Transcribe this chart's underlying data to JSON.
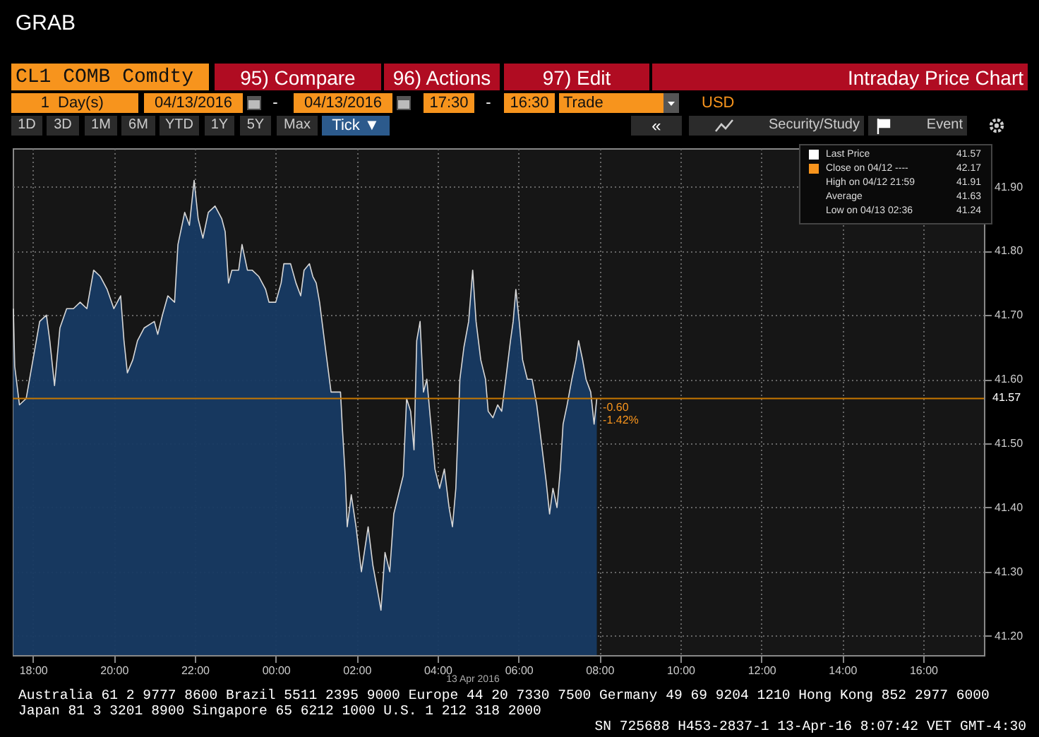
{
  "chart_data": {
    "type": "area",
    "title": "GRAB",
    "subtitle": "Intraday Price Chart",
    "x": [
      "2016-04-12T17:31",
      "2016-04-12T17:33",
      "2016-04-12T17:40",
      "2016-04-12T17:50",
      "2016-04-12T18:00",
      "2016-04-12T18:10",
      "2016-04-12T18:20",
      "2016-04-12T18:25",
      "2016-04-12T18:32",
      "2016-04-12T18:40",
      "2016-04-12T18:50",
      "2016-04-12T19:00",
      "2016-04-12T19:10",
      "2016-04-12T19:20",
      "2016-04-12T19:30",
      "2016-04-12T19:40",
      "2016-04-12T19:50",
      "2016-04-12T20:00",
      "2016-04-12T20:10",
      "2016-04-12T20:15",
      "2016-04-12T20:20",
      "2016-04-12T20:28",
      "2016-04-12T20:35",
      "2016-04-12T20:45",
      "2016-04-12T21:00",
      "2016-04-12T21:05",
      "2016-04-12T21:12",
      "2016-04-12T21:20",
      "2016-04-12T21:30",
      "2016-04-12T21:35",
      "2016-04-12T21:45",
      "2016-04-12T21:52",
      "2016-04-12T21:59",
      "2016-04-12T22:05",
      "2016-04-12T22:12",
      "2016-04-12T22:20",
      "2016-04-12T22:30",
      "2016-04-12T22:40",
      "2016-04-12T22:45",
      "2016-04-12T22:50",
      "2016-04-12T22:55",
      "2016-04-12T23:05",
      "2016-04-12T23:10",
      "2016-04-12T23:18",
      "2016-04-12T23:25",
      "2016-04-12T23:35",
      "2016-04-12T23:45",
      "2016-04-12T23:50",
      "2016-04-13T00:00",
      "2016-04-13T00:08",
      "2016-04-13T00:12",
      "2016-04-13T00:22",
      "2016-04-13T00:30",
      "2016-04-13T00:37",
      "2016-04-13T00:42",
      "2016-04-13T00:50",
      "2016-04-13T00:55",
      "2016-04-13T01:00",
      "2016-04-13T01:05",
      "2016-04-13T01:11",
      "2016-04-13T01:22",
      "2016-04-13T01:36",
      "2016-04-13T01:39",
      "2016-04-13T01:43",
      "2016-04-13T01:46",
      "2016-04-13T01:52",
      "2016-04-13T01:59",
      "2016-04-13T02:07",
      "2016-04-13T02:17",
      "2016-04-13T02:24",
      "2016-04-13T02:31",
      "2016-04-13T02:36",
      "2016-04-13T02:42",
      "2016-04-13T02:49",
      "2016-04-13T02:55",
      "2016-04-13T03:02",
      "2016-04-13T03:09",
      "2016-04-13T03:14",
      "2016-04-13T03:20",
      "2016-04-13T03:25",
      "2016-04-13T03:29",
      "2016-04-13T03:34",
      "2016-04-13T03:39",
      "2016-04-13T03:44",
      "2016-04-13T03:50",
      "2016-04-13T03:56",
      "2016-04-13T04:03",
      "2016-04-13T04:10",
      "2016-04-13T04:17",
      "2016-04-13T04:22",
      "2016-04-13T04:27",
      "2016-04-13T04:33",
      "2016-04-13T04:39",
      "2016-04-13T04:46",
      "2016-04-13T04:52",
      "2016-04-13T04:57",
      "2016-04-13T05:04",
      "2016-04-13T05:11",
      "2016-04-13T05:15",
      "2016-04-13T05:22",
      "2016-04-13T05:29",
      "2016-04-13T05:35",
      "2016-04-13T05:41",
      "2016-04-13T05:48",
      "2016-04-13T05:52",
      "2016-04-13T05:56",
      "2016-04-13T06:01",
      "2016-04-13T06:06",
      "2016-04-13T06:13",
      "2016-04-13T06:20",
      "2016-04-13T06:27",
      "2016-04-13T06:34",
      "2016-04-13T06:41",
      "2016-04-13T06:46",
      "2016-04-13T06:51",
      "2016-04-13T06:57",
      "2016-04-13T07:02",
      "2016-04-13T07:06",
      "2016-04-13T07:12",
      "2016-04-13T07:19",
      "2016-04-13T07:25",
      "2016-04-13T07:29",
      "2016-04-13T07:35",
      "2016-04-13T07:40",
      "2016-04-13T07:47",
      "2016-04-13T07:52",
      "2016-04-13T07:56"
    ],
    "series": [
      {
        "color": "#173a63",
        "values": [
          41.71,
          41.62,
          41.56,
          41.57,
          41.63,
          41.69,
          41.7,
          41.66,
          41.59,
          41.68,
          41.71,
          41.71,
          41.72,
          41.71,
          41.77,
          41.76,
          41.74,
          41.71,
          41.73,
          41.66,
          41.61,
          41.63,
          41.66,
          41.68,
          41.69,
          41.67,
          41.7,
          41.73,
          41.72,
          41.81,
          41.86,
          41.84,
          41.91,
          41.85,
          41.82,
          41.86,
          41.87,
          41.85,
          41.83,
          41.75,
          41.77,
          41.77,
          41.81,
          41.77,
          41.77,
          41.76,
          41.74,
          41.72,
          41.72,
          41.75,
          41.78,
          41.78,
          41.75,
          41.73,
          41.77,
          41.78,
          41.76,
          41.75,
          41.72,
          41.67,
          41.58,
          41.58,
          41.52,
          41.45,
          41.37,
          41.42,
          41.37,
          41.3,
          41.37,
          41.31,
          41.27,
          41.24,
          41.33,
          41.3,
          41.39,
          41.42,
          41.45,
          41.57,
          41.55,
          41.49,
          41.66,
          41.69,
          41.58,
          41.6,
          41.53,
          41.46,
          41.43,
          41.46,
          41.4,
          41.37,
          41.43,
          41.6,
          41.65,
          41.69,
          41.77,
          41.69,
          41.63,
          41.6,
          41.55,
          41.54,
          41.56,
          41.55,
          41.6,
          41.66,
          41.69,
          41.74,
          41.69,
          41.63,
          41.6,
          41.6,
          41.56,
          41.5,
          41.44,
          41.39,
          41.43,
          41.4,
          41.46,
          41.53,
          41.56,
          41.6,
          41.63,
          41.66,
          41.63,
          41.6,
          41.58,
          41.53,
          41.57
        ]
      }
    ],
    "xlim": [
      "2016-04-12T17:30",
      "2016-04-13T17:30"
    ],
    "xticks": [
      {
        "value": "2016-04-12T18:00",
        "label": "18:00"
      },
      {
        "value": "2016-04-12T20:00",
        "label": "20:00"
      },
      {
        "value": "2016-04-12T22:00",
        "label": "22:00"
      },
      {
        "value": "2016-04-13T00:00",
        "label": "00:00"
      },
      {
        "value": "2016-04-13T02:00",
        "label": "02:00"
      },
      {
        "value": "2016-04-13T04:00",
        "label": "04:00"
      },
      {
        "value": "2016-04-13T06:00",
        "label": "06:00"
      },
      {
        "value": "2016-04-13T08:00",
        "label": "08:00"
      },
      {
        "value": "2016-04-13T10:00",
        "label": "10:00"
      },
      {
        "value": "2016-04-13T12:00",
        "label": "12:00"
      },
      {
        "value": "2016-04-13T14:00",
        "label": "14:00"
      },
      {
        "value": "2016-04-13T16:00",
        "label": "16:00"
      }
    ],
    "ylim": [
      41.17,
      41.96
    ],
    "yticks": [
      {
        "value": 41.2,
        "label": "41.20"
      },
      {
        "value": 41.3,
        "label": "41.30"
      },
      {
        "value": 41.4,
        "label": "41.40"
      },
      {
        "value": 41.5,
        "label": "41.50"
      },
      {
        "value": 41.6,
        "label": "41.60"
      },
      {
        "value": 41.7,
        "label": "41.70"
      },
      {
        "value": 41.8,
        "label": "41.80"
      },
      {
        "value": 41.9,
        "label": "41.90"
      }
    ],
    "grid": true,
    "ref_lines": [
      {
        "axis": "y",
        "value": 41.57,
        "label": "41.57",
        "color": "#c87800"
      }
    ],
    "annotations": [
      "CL1 COMB Comdty",
      "95) Compare",
      "96) Actions",
      "97) Edit",
      "1",
      "Day(s)",
      "04/13/2016",
      "-",
      "04/13/2016",
      "17:30",
      "-",
      "16:30",
      "Trade",
      "USD",
      "1D",
      "3D",
      "1M",
      "6M",
      "YTD",
      "1Y",
      "5Y",
      "Max",
      "Tick ▼",
      "«",
      "Security/Study",
      "Event",
      "Last Price",
      "41.57",
      "Close on 04/12 ----",
      "42.17",
      "High on 04/12 21:59",
      "41.91",
      "Average",
      "41.63",
      "Low on 04/13 02:36",
      "41.24",
      {
        "text": "-0.60",
        "x": "2016-04-13T08:05",
        "y": 41.555
      },
      {
        "text": "-1.42%",
        "x": "2016-04-13T08:05",
        "y": 41.535
      },
      "13 Apr 2016",
      "Australia 61 2 9777 8600 Brazil 5511 2395 9000 Europe 44 20 7330 7500 Germany 49 69 9204 1210 Hong Kong 852 2977 6000",
      "Japan 81 3 3201 8900      Singapore 65 6212 1000      U.S. 1 212 318 2000",
      "SN 725688 H453-2837-1 13-Apr-16  8:07:42 VET  GMT-4:30"
    ]
  }
}
